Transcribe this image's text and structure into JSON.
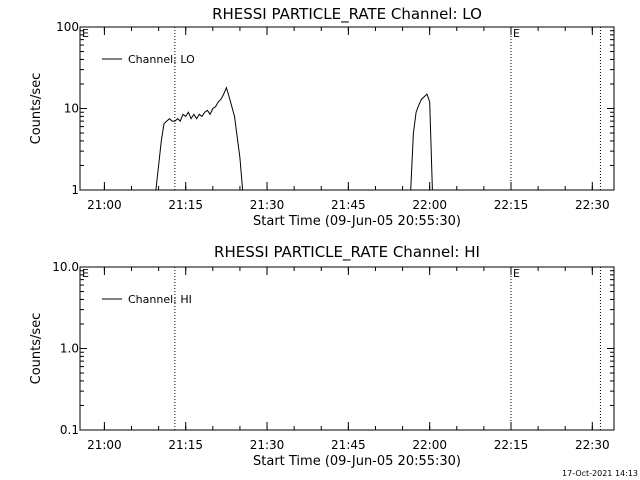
{
  "footer_timestamp": "17-Oct-2021 14:13",
  "chart_data": [
    {
      "type": "line",
      "title": "RHESSI PARTICLE_RATE Channel: LO",
      "xlabel": "Start Time (09-Jun-05 20:55:30)",
      "ylabel": "Counts/sec",
      "y_scale": "log",
      "ylim": [
        1,
        100
      ],
      "y_ticks": [
        1,
        10,
        100
      ],
      "y_tick_labels": [
        "1",
        "10",
        "100"
      ],
      "xlim": [
        "20:55:30",
        "22:34:00"
      ],
      "x_ticks": [
        "21:00",
        "21:15",
        "21:30",
        "21:45",
        "22:00",
        "22:15",
        "22:30"
      ],
      "x_tick_labels": [
        "21:00",
        "21:15",
        "21:30",
        "21:45",
        "22:00",
        "22:15",
        "22:30"
      ],
      "vertical_markers": [
        "21:13:00",
        "22:15:00",
        "22:31:30"
      ],
      "edge_annotations": [
        {
          "time": "20:55:30",
          "label": "E"
        },
        {
          "time": "22:15:00",
          "label": "E"
        }
      ],
      "legend": {
        "entries": [
          "Channel: LO"
        ],
        "placement": "top-left"
      },
      "series": [
        {
          "name": "Channel: LO",
          "x": [
            "21:09:30",
            "21:10:30",
            "21:11:00",
            "21:11:30",
            "21:12:00",
            "21:12:30",
            "21:13:00",
            "21:13:30",
            "21:14:00",
            "21:14:30",
            "21:15:00",
            "21:15:30",
            "21:16:00",
            "21:16:30",
            "21:17:00",
            "21:17:30",
            "21:18:00",
            "21:18:30",
            "21:19:00",
            "21:19:30",
            "21:20:00",
            "21:20:30",
            "21:21:00",
            "21:21:30",
            "21:22:00",
            "21:22:30",
            "21:23:00",
            "21:24:00",
            "21:25:00",
            "21:25:30",
            "21:56:30",
            "21:57:00",
            "21:57:30",
            "21:58:00",
            "21:58:30",
            "21:59:00",
            "21:59:30",
            "22:00:00",
            "22:00:30"
          ],
          "values": [
            1,
            4,
            6.5,
            7,
            7.5,
            7,
            7,
            7.5,
            7,
            8.5,
            8,
            9,
            7.5,
            8.5,
            7.5,
            8.5,
            8,
            9,
            9.5,
            8.5,
            10,
            10.5,
            12,
            13,
            15,
            18,
            14,
            8,
            2.5,
            1,
            1,
            5,
            9,
            11,
            13,
            14,
            15,
            12,
            1
          ]
        }
      ]
    },
    {
      "type": "line",
      "title": "RHESSI PARTICLE_RATE Channel: HI",
      "xlabel": "Start Time (09-Jun-05 20:55:30)",
      "ylabel": "Counts/sec",
      "y_scale": "log",
      "ylim": [
        0.1,
        10
      ],
      "y_ticks": [
        0.1,
        1,
        10
      ],
      "y_tick_labels": [
        "0.1",
        "1.0",
        "10.0"
      ],
      "xlim": [
        "20:55:30",
        "22:34:00"
      ],
      "x_ticks": [
        "21:00",
        "21:15",
        "21:30",
        "21:45",
        "22:00",
        "22:15",
        "22:30"
      ],
      "x_tick_labels": [
        "21:00",
        "21:15",
        "21:30",
        "21:45",
        "22:00",
        "22:15",
        "22:30"
      ],
      "vertical_markers": [
        "21:13:00",
        "22:15:00",
        "22:31:30"
      ],
      "edge_annotations": [
        {
          "time": "20:55:30",
          "label": "E"
        },
        {
          "time": "22:15:00",
          "label": "E"
        }
      ],
      "legend": {
        "entries": [
          "Channel: HI"
        ],
        "placement": "top-left"
      },
      "series": [
        {
          "name": "Channel: HI",
          "x": [],
          "values": []
        }
      ]
    }
  ]
}
